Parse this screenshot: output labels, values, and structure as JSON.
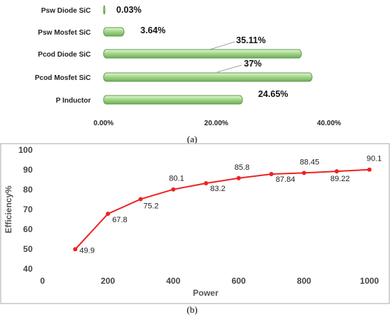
{
  "chart_data": [
    {
      "type": "bar",
      "orientation": "horizontal",
      "panel_label": "(a)",
      "categories": [
        "Psw Diode SiC",
        "Psw Mosfet SiC",
        "Pcod Diode SiC",
        "Pcod Mosfet SiC",
        "P Inductor"
      ],
      "values": [
        0.03,
        3.64,
        35.11,
        37,
        24.65
      ],
      "data_labels": [
        "0.03%",
        "3.64%",
        "35.11%",
        "37%",
        "24.65%"
      ],
      "x_ticks": [
        "0.00%",
        "20.00%",
        "40.00%"
      ],
      "x_tick_values": [
        0,
        20,
        40
      ],
      "xlim": [
        0,
        45
      ],
      "grid": false,
      "colors": {
        "bar_fill": "#a5d88c",
        "bar_stroke": "#5a9a48"
      }
    },
    {
      "type": "line",
      "panel_label": "(b)",
      "x": [
        100,
        200,
        300,
        400,
        500,
        600,
        700,
        800,
        900,
        1000
      ],
      "series": [
        {
          "values": [
            49.9,
            67.8,
            75.2,
            80.1,
            83.2,
            85.8,
            87.84,
            88.45,
            89.22,
            90.1
          ]
        }
      ],
      "data_labels": [
        "49.9",
        "67.8",
        "75.2",
        "80.1",
        "83.2",
        "85.8",
        "87.84",
        "88.45",
        "89.22",
        "90.1"
      ],
      "xlabel": "Power",
      "ylabel": "Efficiency%",
      "xlim": [
        0,
        1000
      ],
      "ylim": [
        40,
        100
      ],
      "x_ticks": [
        "0",
        "200",
        "400",
        "600",
        "800",
        "1000"
      ],
      "x_tick_values": [
        0,
        200,
        400,
        600,
        800,
        1000
      ],
      "y_ticks": [
        "40",
        "50",
        "60",
        "70",
        "80",
        "90",
        "100"
      ],
      "y_tick_values": [
        40,
        50,
        60,
        70,
        80,
        90,
        100
      ],
      "grid": false,
      "colors": {
        "line": "#ee2222",
        "frame": "#aaaaaa"
      }
    }
  ]
}
